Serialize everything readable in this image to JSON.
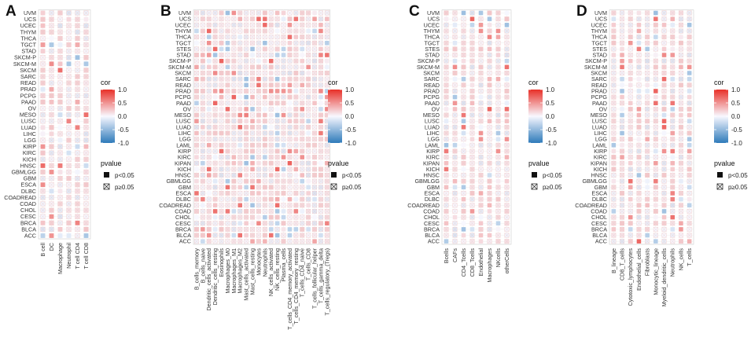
{
  "chart_data": {
    "type": "heatmap",
    "panels": [
      {
        "letter": "A",
        "rows": [
          "UVM",
          "UCS",
          "UCEC",
          "THYM",
          "THCA",
          "TGCT",
          "STAD",
          "SKCM-P",
          "SKCM-M",
          "SKCM",
          "SARC",
          "READ",
          "PRAD",
          "PCPG",
          "PAAD",
          "OV",
          "MESO",
          "LUSC",
          "LUAD",
          "LIHC",
          "LGG",
          "KIRP",
          "KIRC",
          "KICH",
          "HNSC",
          "GBMLGG",
          "GBM",
          "ESCA",
          "DLBC",
          "COADREAD",
          "COAD",
          "CHOL",
          "CESC",
          "BRCA",
          "BLCA",
          "ACC"
        ],
        "columns": [
          "B cell",
          "DC",
          "Macrophage",
          "Neutrophil",
          "T cell CD4",
          "T cell CD8"
        ],
        "legend": {
          "cor_title": "cor",
          "cor_ticks": [
            "1.0",
            "0.5",
            "0.0",
            "-0.5",
            "-1.0"
          ],
          "pvalue_title": "pvalue",
          "sig_label": "p<0.05",
          "nonsig_label": "p≥0.05"
        }
      },
      {
        "letter": "B",
        "rows": [
          "UVM",
          "UCS",
          "UCEC",
          "THYM",
          "THCA",
          "TGCT",
          "STES",
          "STAD",
          "SKCM-P",
          "SKCM-M",
          "SKCM",
          "SARC",
          "READ",
          "PRAD",
          "PCPG",
          "PAAD",
          "OV",
          "MESO",
          "LUSC",
          "LUAD",
          "LIHC",
          "LGG",
          "LAML",
          "KIRP",
          "KIRC",
          "KIPAN",
          "KICH",
          "HNSC",
          "GBMLGG",
          "GBM",
          "ESCA",
          "DLBC",
          "COADREAD",
          "COAD",
          "CHOL",
          "CESC",
          "BRCA",
          "BLCA",
          "ACC"
        ],
        "columns": [
          "B_cells_memory",
          "B_cells_naive",
          "Dendritic_cells_activated",
          "Dendritic_cells_resting",
          "Eosinophils",
          "Macrophages_M0",
          "Macrophages_M1",
          "Macrophages_M2",
          "Mast_cells_activated",
          "Mast_cells_resting",
          "Monocytes",
          "Neutrophils",
          "NK_cells_activated",
          "NK_cells_resting",
          "Plasma_cells",
          "T_cells_CD4_memory_activated",
          "T_cells_CD4_memory_resting",
          "T_cells_CD4_naive",
          "T_cells_CD8",
          "T_cells_follicular_helper",
          "T_cells_gamma_delta",
          "T_cells_regulatory_(Tregs)"
        ],
        "legend": {
          "cor_title": "cor",
          "cor_ticks": [
            "1.0",
            "0.5",
            "0.0",
            "-0.5",
            "-1.0"
          ],
          "pvalue_title": "pvalue",
          "sig_label": "p<0.05",
          "nonsig_label": "p≥0.05"
        }
      },
      {
        "letter": "C",
        "rows": [
          "UVM",
          "UCS",
          "UCEC",
          "THYM",
          "THCA",
          "TGCT",
          "STES",
          "STAD",
          "SKCM-P",
          "SKCM-M",
          "SKCM",
          "SARC",
          "READ",
          "PRAD",
          "PCPG",
          "PAAD",
          "OV",
          "MESO",
          "LUSC",
          "LUAD",
          "LIHC",
          "LGG",
          "LAML",
          "KIRP",
          "KIRC",
          "KIPAN",
          "KICH",
          "HNSC",
          "GBMLGG",
          "GBM",
          "ESCA",
          "DLBC",
          "COADREAD",
          "COAD",
          "CHOL",
          "CESC",
          "BRCA",
          "BLCA",
          "ACC"
        ],
        "columns": [
          "Bcells",
          "CAFs",
          "CD4_Tcells",
          "CD8_Tcells",
          "Endothelial",
          "Macrophages",
          "NKcells",
          "otherCells"
        ],
        "legend": {
          "cor_title": "cor",
          "cor_ticks": [
            "1.0",
            "0.5",
            "0.0",
            "-0.5",
            "-1.0"
          ],
          "pvalue_title": "pvalue",
          "sig_label": "p<0.05",
          "nonsig_label": "p≥0.05"
        }
      },
      {
        "letter": "D",
        "rows": [
          "UVM",
          "UCS",
          "UCEC",
          "THYM",
          "THCA",
          "TGCT",
          "STES",
          "STAD",
          "SKCM-P",
          "SKCM-M",
          "SKCM",
          "SARC",
          "READ",
          "PRAD",
          "PCPG",
          "PAAD",
          "OV",
          "MESO",
          "LUSC",
          "LUAD",
          "LIHC",
          "LGG",
          "LAML",
          "KIRP",
          "KIRC",
          "KIPAN",
          "KICH",
          "HNSC",
          "GBMLGG",
          "GBM",
          "ESCA",
          "DLBC",
          "COADREAD",
          "COAD",
          "CHOL",
          "CESC",
          "BRCA",
          "BLCA",
          "ACC"
        ],
        "columns": [
          "B_lineage",
          "CD8_T_cells",
          "Cytotoxic_lymphocytes",
          "Endothelial_cells",
          "Fibroblasts",
          "Monocytic_lineage",
          "Myeloid_dendritic_cells",
          "Neutrophils",
          "NK_cells",
          "T_cells"
        ],
        "legend": {
          "cor_title": "cor",
          "cor_ticks": [
            "1.0",
            "0.5",
            "0.0",
            "-0.5",
            "-1.0"
          ],
          "pvalue_title": "pvalue",
          "sig_label": "p<0.05",
          "nonsig_label": "p≥0.05"
        }
      }
    ]
  }
}
